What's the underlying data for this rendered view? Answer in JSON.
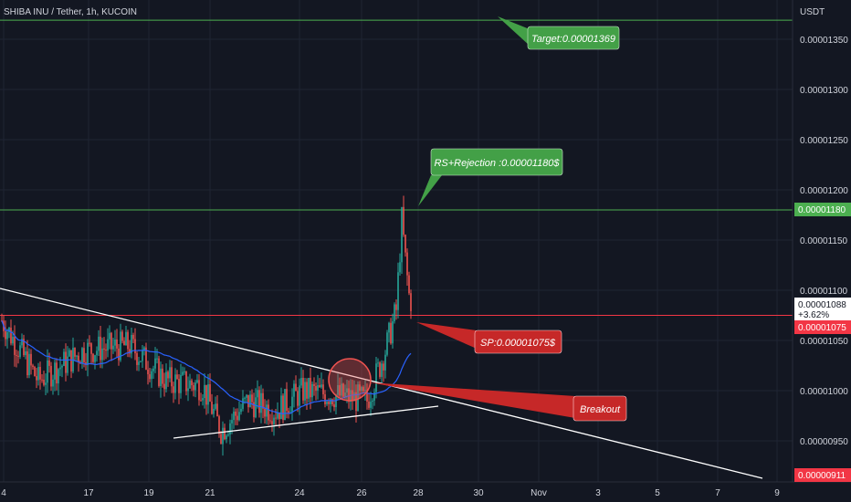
{
  "chart_data": {
    "type": "candlestick",
    "title": "SHIBA INU / Tether, 1h, KUCOIN",
    "y_axis": {
      "unit": "USDT",
      "ticks": [
        "0.00001350",
        "0.00001300",
        "0.00001250",
        "0.00001200",
        "0.00001150",
        "0.00001100",
        "0.00001050",
        "0.00001000",
        "0.00000950"
      ],
      "ylim": [
        9.1e-06,
        1.375e-05
      ]
    },
    "x_axis": {
      "ticks": [
        "4",
        "17",
        "19",
        "21",
        "24",
        "26",
        "28",
        "30",
        "Nov",
        "3",
        "5",
        "7",
        "9"
      ]
    },
    "horizontal_levels": [
      {
        "name": "target",
        "value": 1.369e-05,
        "color": "#4caf50"
      },
      {
        "name": "resistance",
        "value": 1.18e-05,
        "color": "#4caf50",
        "price_tag": "0.00001180"
      },
      {
        "name": "support",
        "value": 1.075e-05,
        "color": "#f23645",
        "price_tag": "0.00001075"
      }
    ],
    "price_tags": {
      "current_price": "0.00001088",
      "change": "+3.62%",
      "bottom": "0.00000911"
    },
    "annotations": {
      "target": "Target:0.00001369",
      "resistance": "RS+Rejection :0.00001180$",
      "sp": "SP:0.00001075$",
      "breakout": "Breakout"
    },
    "colors": {
      "up": "#26a69a",
      "down": "#ef5350",
      "ma": "#2962ff",
      "trendline": "#ffffff",
      "green_box": "#43a047",
      "red_box": "#c62828"
    }
  }
}
